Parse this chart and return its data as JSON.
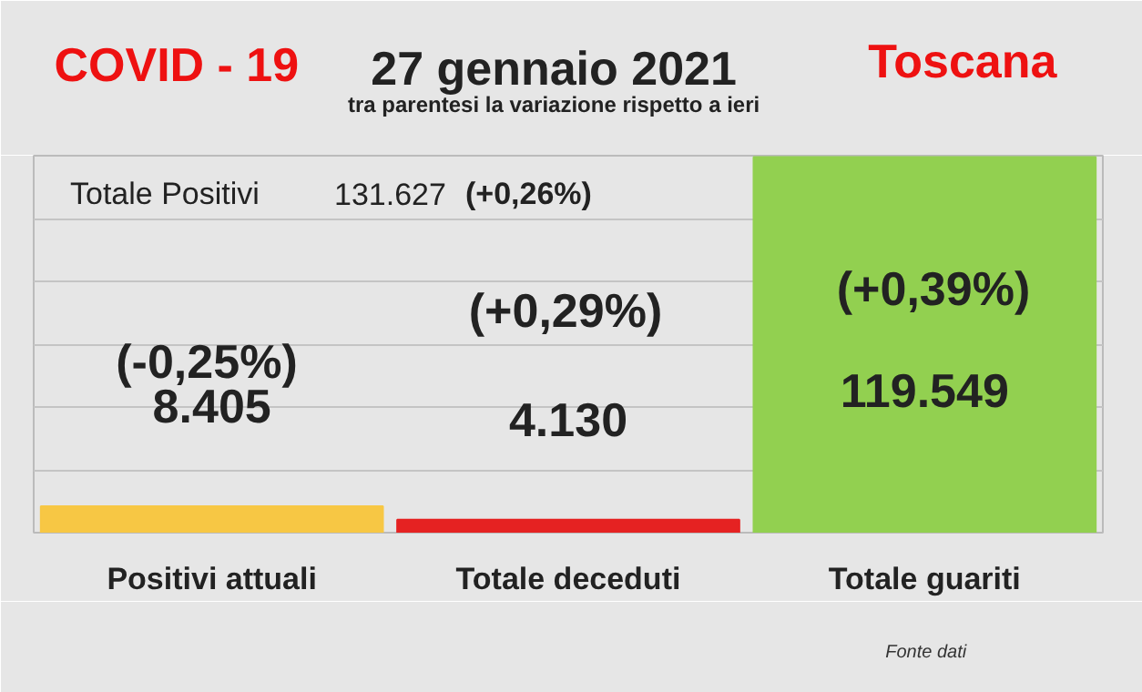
{
  "chart_data": {
    "type": "bar",
    "title": "27 gennaio 2021",
    "subtitle": "tra parentesi la variazione rispetto a ieri",
    "categories": [
      "Positivi attuali",
      "Totale deceduti",
      "Totale guariti"
    ],
    "values": [
      8405,
      4130,
      119549
    ],
    "colors": [
      "#f7c744",
      "#e52222",
      "#92d050"
    ],
    "data_labels": true,
    "value_labels": [
      "8.405",
      "4.130",
      "119.549"
    ],
    "ylim": [
      0,
      120000
    ],
    "yticks": [
      {
        "value": 0,
        "label": null
      },
      {
        "value": 20000,
        "label": null
      },
      {
        "value": 40000,
        "label": null
      },
      {
        "value": 60000,
        "label": null
      },
      {
        "value": 80000,
        "label": null
      },
      {
        "value": 100000,
        "label": null
      },
      {
        "value": 120000,
        "label": null
      }
    ],
    "tick_labels": "x",
    "grid": "y",
    "annotations": [
      "COVID - 19",
      "Toscana",
      "Totale Positivi",
      "131.627",
      "(+0,26%)",
      "Fonte dati",
      "(-0,25%)",
      "(+0,29%)",
      "(+0,39%)"
    ]
  }
}
